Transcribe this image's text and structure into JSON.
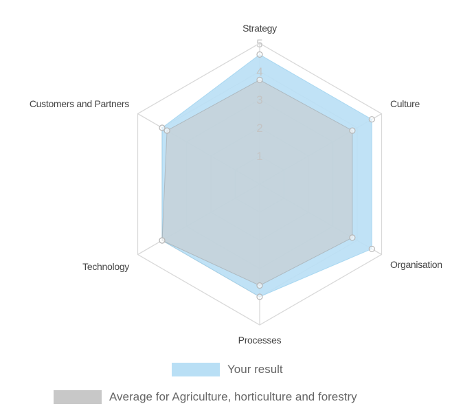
{
  "chart_data": {
    "type": "radar",
    "axes": [
      "Strategy",
      "Culture",
      "Organisation",
      "Processes",
      "Technology",
      "Customers and Partners"
    ],
    "r_ticks": [
      "1",
      "2",
      "3",
      "4",
      "5"
    ],
    "r_range": [
      0,
      5
    ],
    "grid": true,
    "legend_position": "bottom",
    "series": [
      {
        "name": "Your result",
        "values": [
          4.6,
          4.6,
          4.6,
          4.0,
          4.0,
          4.0
        ],
        "color": "#b9dff5",
        "border": "#7cc4ea"
      },
      {
        "name": "Average for Agriculture, horticulture and forestry",
        "values": [
          3.7,
          3.8,
          3.8,
          3.6,
          4.0,
          3.8
        ],
        "color": "#c8c8c8",
        "border": "#9a9a9a"
      }
    ]
  }
}
